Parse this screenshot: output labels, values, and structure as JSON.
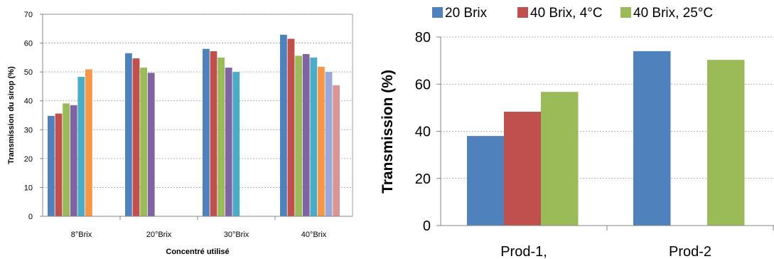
{
  "chart_data": [
    {
      "type": "bar",
      "categories": [
        "8°Brix",
        "20°Brix",
        "30°Brix",
        "40°Brix"
      ],
      "series_colors": [
        "#4f81bd",
        "#c0504d",
        "#9bbb59",
        "#8064a2",
        "#4bacc6",
        "#f79646",
        "#9aaad8",
        "#d99694"
      ],
      "series": [
        {
          "values": [
            34.8,
            56.5,
            58.0,
            62.9
          ]
        },
        {
          "values": [
            35.6,
            54.7,
            57.2,
            61.5
          ]
        },
        {
          "values": [
            39.1,
            51.5,
            55.0,
            55.6
          ]
        },
        {
          "values": [
            38.5,
            49.7,
            51.5,
            56.2
          ]
        },
        {
          "values": [
            48.3,
            null,
            50.0,
            55.0
          ]
        },
        {
          "values": [
            50.9,
            null,
            null,
            51.8
          ]
        },
        {
          "values": [
            null,
            null,
            null,
            50.0
          ]
        },
        {
          "values": [
            null,
            null,
            null,
            45.4
          ]
        }
      ],
      "title": "",
      "xlabel": "Concentré utilisé",
      "ylabel": "Transmission  du sirop (%)",
      "ylim": [
        0,
        70
      ],
      "yticks": [
        "0",
        "10",
        "20",
        "30",
        "40",
        "50",
        "60",
        "70"
      ],
      "grid": true
    },
    {
      "type": "bar",
      "categories": [
        "Prod-1,",
        "Prod-2"
      ],
      "series": [
        {
          "name": "20 Brix",
          "color": "#4f81bd",
          "values": [
            38,
            74
          ]
        },
        {
          "name": "40 Brix, 4°C",
          "color": "#c0504d",
          "values": [
            48.3,
            null
          ]
        },
        {
          "name": "40 Brix, 25°C",
          "color": "#9bbb59",
          "values": [
            56.7,
            70.3
          ]
        }
      ],
      "title": "",
      "xlabel": "",
      "ylabel": "Transmission  (%)",
      "ylim": [
        0,
        80
      ],
      "yticks": [
        "0",
        "20",
        "40",
        "60",
        "80"
      ],
      "grid": true,
      "legend": "top"
    }
  ]
}
